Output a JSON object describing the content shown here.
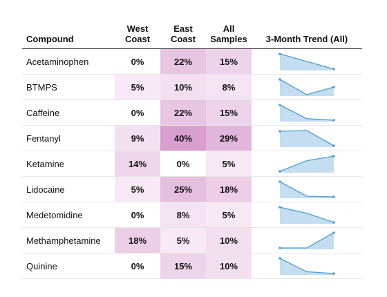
{
  "header": {
    "compound": "Compound",
    "west_line1": "West",
    "west_line2": "Coast",
    "east_line1": "East",
    "east_line2": "Coast",
    "all_line1": "All",
    "all_line2": "Samples",
    "trend": "3-Month Trend (All)"
  },
  "colors": {
    "trend_line": "#4a9fd4",
    "trend_fill": "#c4ddf1",
    "cell_low": "#fbf4fa",
    "cell_high": "#d99fd0"
  },
  "chart_data": {
    "type": "table",
    "columns": [
      "West Coast",
      "East Coast",
      "All Samples"
    ],
    "value_max": 40,
    "rows": [
      {
        "compound": "Acetaminophen",
        "west": "0%",
        "east": "22%",
        "all": "15%",
        "values": [
          0,
          22,
          15
        ],
        "trend": [
          30,
          20,
          10
        ]
      },
      {
        "compound": "BTMPS",
        "west": "5%",
        "east": "10%",
        "all": "8%",
        "values": [
          5,
          10,
          8
        ],
        "trend": [
          18,
          0,
          9
        ]
      },
      {
        "compound": "Caffeine",
        "west": "0%",
        "east": "22%",
        "all": "15%",
        "values": [
          0,
          22,
          15
        ],
        "trend": [
          28,
          10,
          8
        ]
      },
      {
        "compound": "Fentanyl",
        "west": "9%",
        "east": "40%",
        "all": "29%",
        "values": [
          9,
          40,
          29
        ],
        "trend": [
          31,
          32,
          10
        ]
      },
      {
        "compound": "Ketamine",
        "west": "14%",
        "east": "0%",
        "all": "5%",
        "values": [
          14,
          0,
          5
        ],
        "trend": [
          1,
          8,
          11
        ]
      },
      {
        "compound": "Lidocaine",
        "west": "5%",
        "east": "25%",
        "all": "18%",
        "values": [
          5,
          25,
          18
        ],
        "trend": [
          30,
          6,
          5
        ]
      },
      {
        "compound": "Medetomidine",
        "west": "0%",
        "east": "8%",
        "all": "5%",
        "values": [
          0,
          8,
          5
        ],
        "trend": [
          10,
          6,
          0
        ]
      },
      {
        "compound": "Methamphetamine",
        "west": "18%",
        "east": "5%",
        "all": "10%",
        "values": [
          18,
          5,
          10
        ],
        "trend": [
          2,
          2,
          11
        ]
      },
      {
        "compound": "Quinine",
        "west": "0%",
        "east": "15%",
        "all": "10%",
        "values": [
          0,
          15,
          10
        ],
        "trend": [
          20,
          5,
          3
        ]
      }
    ]
  }
}
